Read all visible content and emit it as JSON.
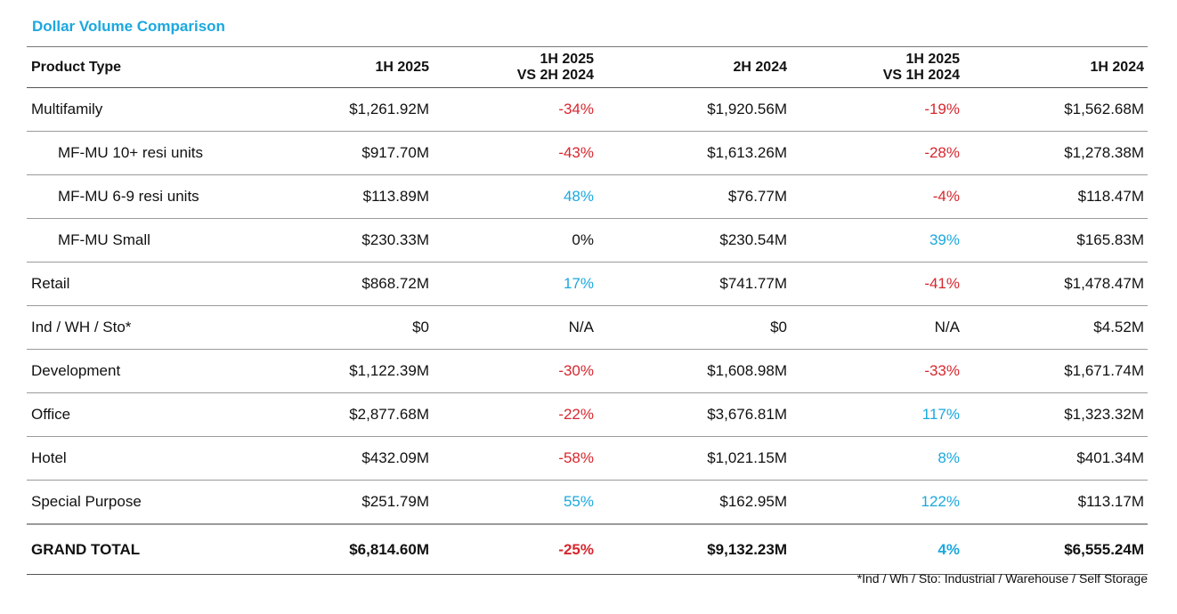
{
  "title": "Dollar Volume Comparison",
  "colors": {
    "accent": "#1ba8de",
    "negative": "#d6272e",
    "neutral": "#111111"
  },
  "columns": [
    {
      "line1": "Product Type",
      "line2": ""
    },
    {
      "line1": "1H 2025",
      "line2": ""
    },
    {
      "line1": "1H 2025",
      "line2": "VS 2H 2024"
    },
    {
      "line1": "2H 2024",
      "line2": ""
    },
    {
      "line1": "1H 2025",
      "line2": "VS 1H 2024"
    },
    {
      "line1": "1H 2024",
      "line2": ""
    }
  ],
  "rows": [
    {
      "type": "Multifamily",
      "indent": false,
      "h1_2025": "$1,261.92M",
      "vs_2h_2024": "-34%",
      "vs_2h_2024_tone": "neg",
      "h2_2024": "$1,920.56M",
      "vs_1h_2024": "-19%",
      "vs_1h_2024_tone": "neg",
      "h1_2024": "$1,562.68M"
    },
    {
      "type": "MF-MU 10+ resi units",
      "indent": true,
      "h1_2025": "$917.70M",
      "vs_2h_2024": "-43%",
      "vs_2h_2024_tone": "neg",
      "h2_2024": "$1,613.26M",
      "vs_1h_2024": "-28%",
      "vs_1h_2024_tone": "neg",
      "h1_2024": "$1,278.38M"
    },
    {
      "type": "MF-MU 6-9 resi units",
      "indent": true,
      "h1_2025": "$113.89M",
      "vs_2h_2024": "48%",
      "vs_2h_2024_tone": "pos",
      "h2_2024": "$76.77M",
      "vs_1h_2024": "-4%",
      "vs_1h_2024_tone": "neg",
      "h1_2024": "$118.47M"
    },
    {
      "type": "MF-MU Small",
      "indent": true,
      "h1_2025": "$230.33M",
      "vs_2h_2024": "0%",
      "vs_2h_2024_tone": "neu",
      "h2_2024": "$230.54M",
      "vs_1h_2024": "39%",
      "vs_1h_2024_tone": "pos",
      "h1_2024": "$165.83M"
    },
    {
      "type": "Retail",
      "indent": false,
      "h1_2025": "$868.72M",
      "vs_2h_2024": "17%",
      "vs_2h_2024_tone": "pos",
      "h2_2024": "$741.77M",
      "vs_1h_2024": "-41%",
      "vs_1h_2024_tone": "neg",
      "h1_2024": "$1,478.47M"
    },
    {
      "type": "Ind / WH / Sto*",
      "indent": false,
      "h1_2025": "$0",
      "vs_2h_2024": "N/A",
      "vs_2h_2024_tone": "neu",
      "h2_2024": "$0",
      "vs_1h_2024": "N/A",
      "vs_1h_2024_tone": "neu",
      "h1_2024": "$4.52M"
    },
    {
      "type": "Development",
      "indent": false,
      "h1_2025": "$1,122.39M",
      "vs_2h_2024": "-30%",
      "vs_2h_2024_tone": "neg",
      "h2_2024": "$1,608.98M",
      "vs_1h_2024": "-33%",
      "vs_1h_2024_tone": "neg",
      "h1_2024": "$1,671.74M"
    },
    {
      "type": "Office",
      "indent": false,
      "h1_2025": "$2,877.68M",
      "vs_2h_2024": "-22%",
      "vs_2h_2024_tone": "neg",
      "h2_2024": "$3,676.81M",
      "vs_1h_2024": "117%",
      "vs_1h_2024_tone": "pos",
      "h1_2024": "$1,323.32M"
    },
    {
      "type": "Hotel",
      "indent": false,
      "h1_2025": "$432.09M",
      "vs_2h_2024": "-58%",
      "vs_2h_2024_tone": "neg",
      "h2_2024": "$1,021.15M",
      "vs_1h_2024": "8%",
      "vs_1h_2024_tone": "pos",
      "h1_2024": "$401.34M"
    },
    {
      "type": "Special Purpose",
      "indent": false,
      "h1_2025": "$251.79M",
      "vs_2h_2024": "55%",
      "vs_2h_2024_tone": "pos",
      "h2_2024": "$162.95M",
      "vs_1h_2024": "122%",
      "vs_1h_2024_tone": "pos",
      "h1_2024": "$113.17M"
    }
  ],
  "total": {
    "type": "GRAND TOTAL",
    "h1_2025": "$6,814.60M",
    "vs_2h_2024": "-25%",
    "vs_2h_2024_tone": "neg",
    "h2_2024": "$9,132.23M",
    "vs_1h_2024": "4%",
    "vs_1h_2024_tone": "pos",
    "h1_2024": "$6,555.24M"
  },
  "footnote": "*Ind / Wh / Sto: Industrial / Warehouse / Self Storage"
}
